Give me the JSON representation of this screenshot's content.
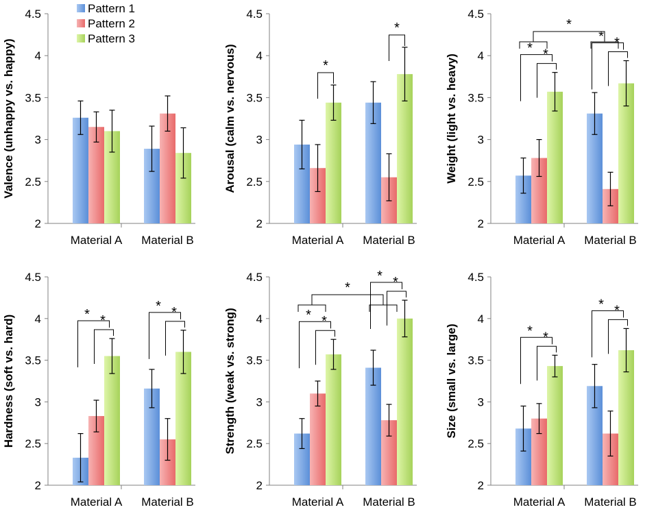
{
  "legend": {
    "items": [
      {
        "label": "Pattern 1",
        "color": "#5b8fd8"
      },
      {
        "label": "Pattern 2",
        "color": "#e86a6a"
      },
      {
        "label": "Pattern 3",
        "color": "#a6d25a"
      }
    ]
  },
  "chart_data": [
    {
      "type": "bar",
      "ylabel": "Valence (unhappy vs. happy)",
      "categories": [
        "Material A",
        "Material B"
      ],
      "ylim": [
        2,
        4.5
      ],
      "yticks": [
        "2",
        "2.5",
        "3",
        "3.5",
        "4",
        "4.5"
      ],
      "series": [
        {
          "name": "Pattern 1",
          "values": [
            3.26,
            2.89
          ],
          "errors": [
            0.2,
            0.27
          ]
        },
        {
          "name": "Pattern 2",
          "values": [
            3.15,
            3.31
          ],
          "errors": [
            0.18,
            0.21
          ]
        },
        {
          "name": "Pattern 3",
          "values": [
            3.1,
            2.84
          ],
          "errors": [
            0.25,
            0.3
          ]
        }
      ],
      "significance": []
    },
    {
      "type": "bar",
      "ylabel": "Arousal (calm vs. nervous)",
      "categories": [
        "Material A",
        "Material B"
      ],
      "ylim": [
        2,
        4.5
      ],
      "yticks": [
        "2",
        "2.5",
        "3",
        "3.5",
        "4",
        "4.5"
      ],
      "series": [
        {
          "name": "Pattern 1",
          "values": [
            2.94,
            3.44
          ],
          "errors": [
            0.29,
            0.25
          ]
        },
        {
          "name": "Pattern 2",
          "values": [
            2.66,
            2.55
          ],
          "errors": [
            0.28,
            0.28
          ]
        },
        {
          "name": "Pattern 3",
          "values": [
            3.44,
            3.78
          ],
          "errors": [
            0.21,
            0.32
          ]
        }
      ],
      "significance": [
        {
          "type": "pair",
          "group": 0,
          "from": 1,
          "to": 2,
          "label": "*"
        },
        {
          "type": "pair",
          "group": 1,
          "from": 1,
          "to": 2,
          "label": "*"
        }
      ]
    },
    {
      "type": "bar",
      "ylabel": "Weight (light vs. heavy)",
      "categories": [
        "Material A",
        "Material B"
      ],
      "ylim": [
        2,
        4.5
      ],
      "yticks": [
        "2",
        "2.5",
        "3",
        "3.5",
        "4",
        "4.5"
      ],
      "series": [
        {
          "name": "Pattern 1",
          "values": [
            2.57,
            3.31
          ],
          "errors": [
            0.21,
            0.25
          ]
        },
        {
          "name": "Pattern 2",
          "values": [
            2.78,
            2.41
          ],
          "errors": [
            0.22,
            0.2
          ]
        },
        {
          "name": "Pattern 3",
          "values": [
            3.57,
            3.67
          ],
          "errors": [
            0.23,
            0.27
          ]
        }
      ],
      "significance": [
        {
          "type": "nested",
          "group": 0,
          "labels": [
            "*",
            "*"
          ]
        },
        {
          "type": "nested",
          "group": 1,
          "labels": [
            "*",
            "*"
          ]
        },
        {
          "type": "between",
          "label": "*"
        }
      ]
    },
    {
      "type": "bar",
      "ylabel": "Hardness (soft vs. hard)",
      "categories": [
        "Material A",
        "Material B"
      ],
      "ylim": [
        2,
        4.5
      ],
      "yticks": [
        "2",
        "2.5",
        "3",
        "3.5",
        "4",
        "4.5"
      ],
      "series": [
        {
          "name": "Pattern 1",
          "values": [
            2.33,
            3.16
          ],
          "errors": [
            0.29,
            0.23
          ]
        },
        {
          "name": "Pattern 2",
          "values": [
            2.83,
            2.55
          ],
          "errors": [
            0.19,
            0.25
          ]
        },
        {
          "name": "Pattern 3",
          "values": [
            3.55,
            3.6
          ],
          "errors": [
            0.21,
            0.26
          ]
        }
      ],
      "significance": [
        {
          "type": "nested",
          "group": 0,
          "labels": [
            "*",
            "*"
          ]
        },
        {
          "type": "nested",
          "group": 1,
          "labels": [
            "*",
            "*"
          ]
        }
      ]
    },
    {
      "type": "bar",
      "ylabel": "Strength (weak vs. strong)",
      "categories": [
        "Material A",
        "Material B"
      ],
      "ylim": [
        2,
        4.5
      ],
      "yticks": [
        "2",
        "2.5",
        "3",
        "3.5",
        "4",
        "4.5"
      ],
      "series": [
        {
          "name": "Pattern 1",
          "values": [
            2.62,
            3.41
          ],
          "errors": [
            0.18,
            0.21
          ]
        },
        {
          "name": "Pattern 2",
          "values": [
            3.1,
            2.78
          ],
          "errors": [
            0.15,
            0.19
          ]
        },
        {
          "name": "Pattern 3",
          "values": [
            3.57,
            4.0
          ],
          "errors": [
            0.18,
            0.22
          ]
        }
      ],
      "significance": [
        {
          "type": "nested",
          "group": 0,
          "labels": [
            "*",
            "*"
          ]
        },
        {
          "type": "nested",
          "group": 1,
          "labels": [
            "*",
            "*"
          ]
        },
        {
          "type": "between",
          "label": "*"
        }
      ]
    },
    {
      "type": "bar",
      "ylabel": "Size (small vs. large)",
      "categories": [
        "Material A",
        "Material B"
      ],
      "ylim": [
        2,
        4.5
      ],
      "yticks": [
        "2",
        "2.5",
        "3",
        "3.5",
        "4",
        "4.5"
      ],
      "series": [
        {
          "name": "Pattern 1",
          "values": [
            2.68,
            3.19
          ],
          "errors": [
            0.27,
            0.26
          ]
        },
        {
          "name": "Pattern 2",
          "values": [
            2.8,
            2.62
          ],
          "errors": [
            0.18,
            0.27
          ]
        },
        {
          "name": "Pattern 3",
          "values": [
            3.43,
            3.62
          ],
          "errors": [
            0.13,
            0.26
          ]
        }
      ],
      "significance": [
        {
          "type": "nested",
          "group": 0,
          "labels": [
            "*",
            "*"
          ]
        },
        {
          "type": "nested",
          "group": 1,
          "labels": [
            "*",
            "*"
          ]
        }
      ]
    }
  ]
}
